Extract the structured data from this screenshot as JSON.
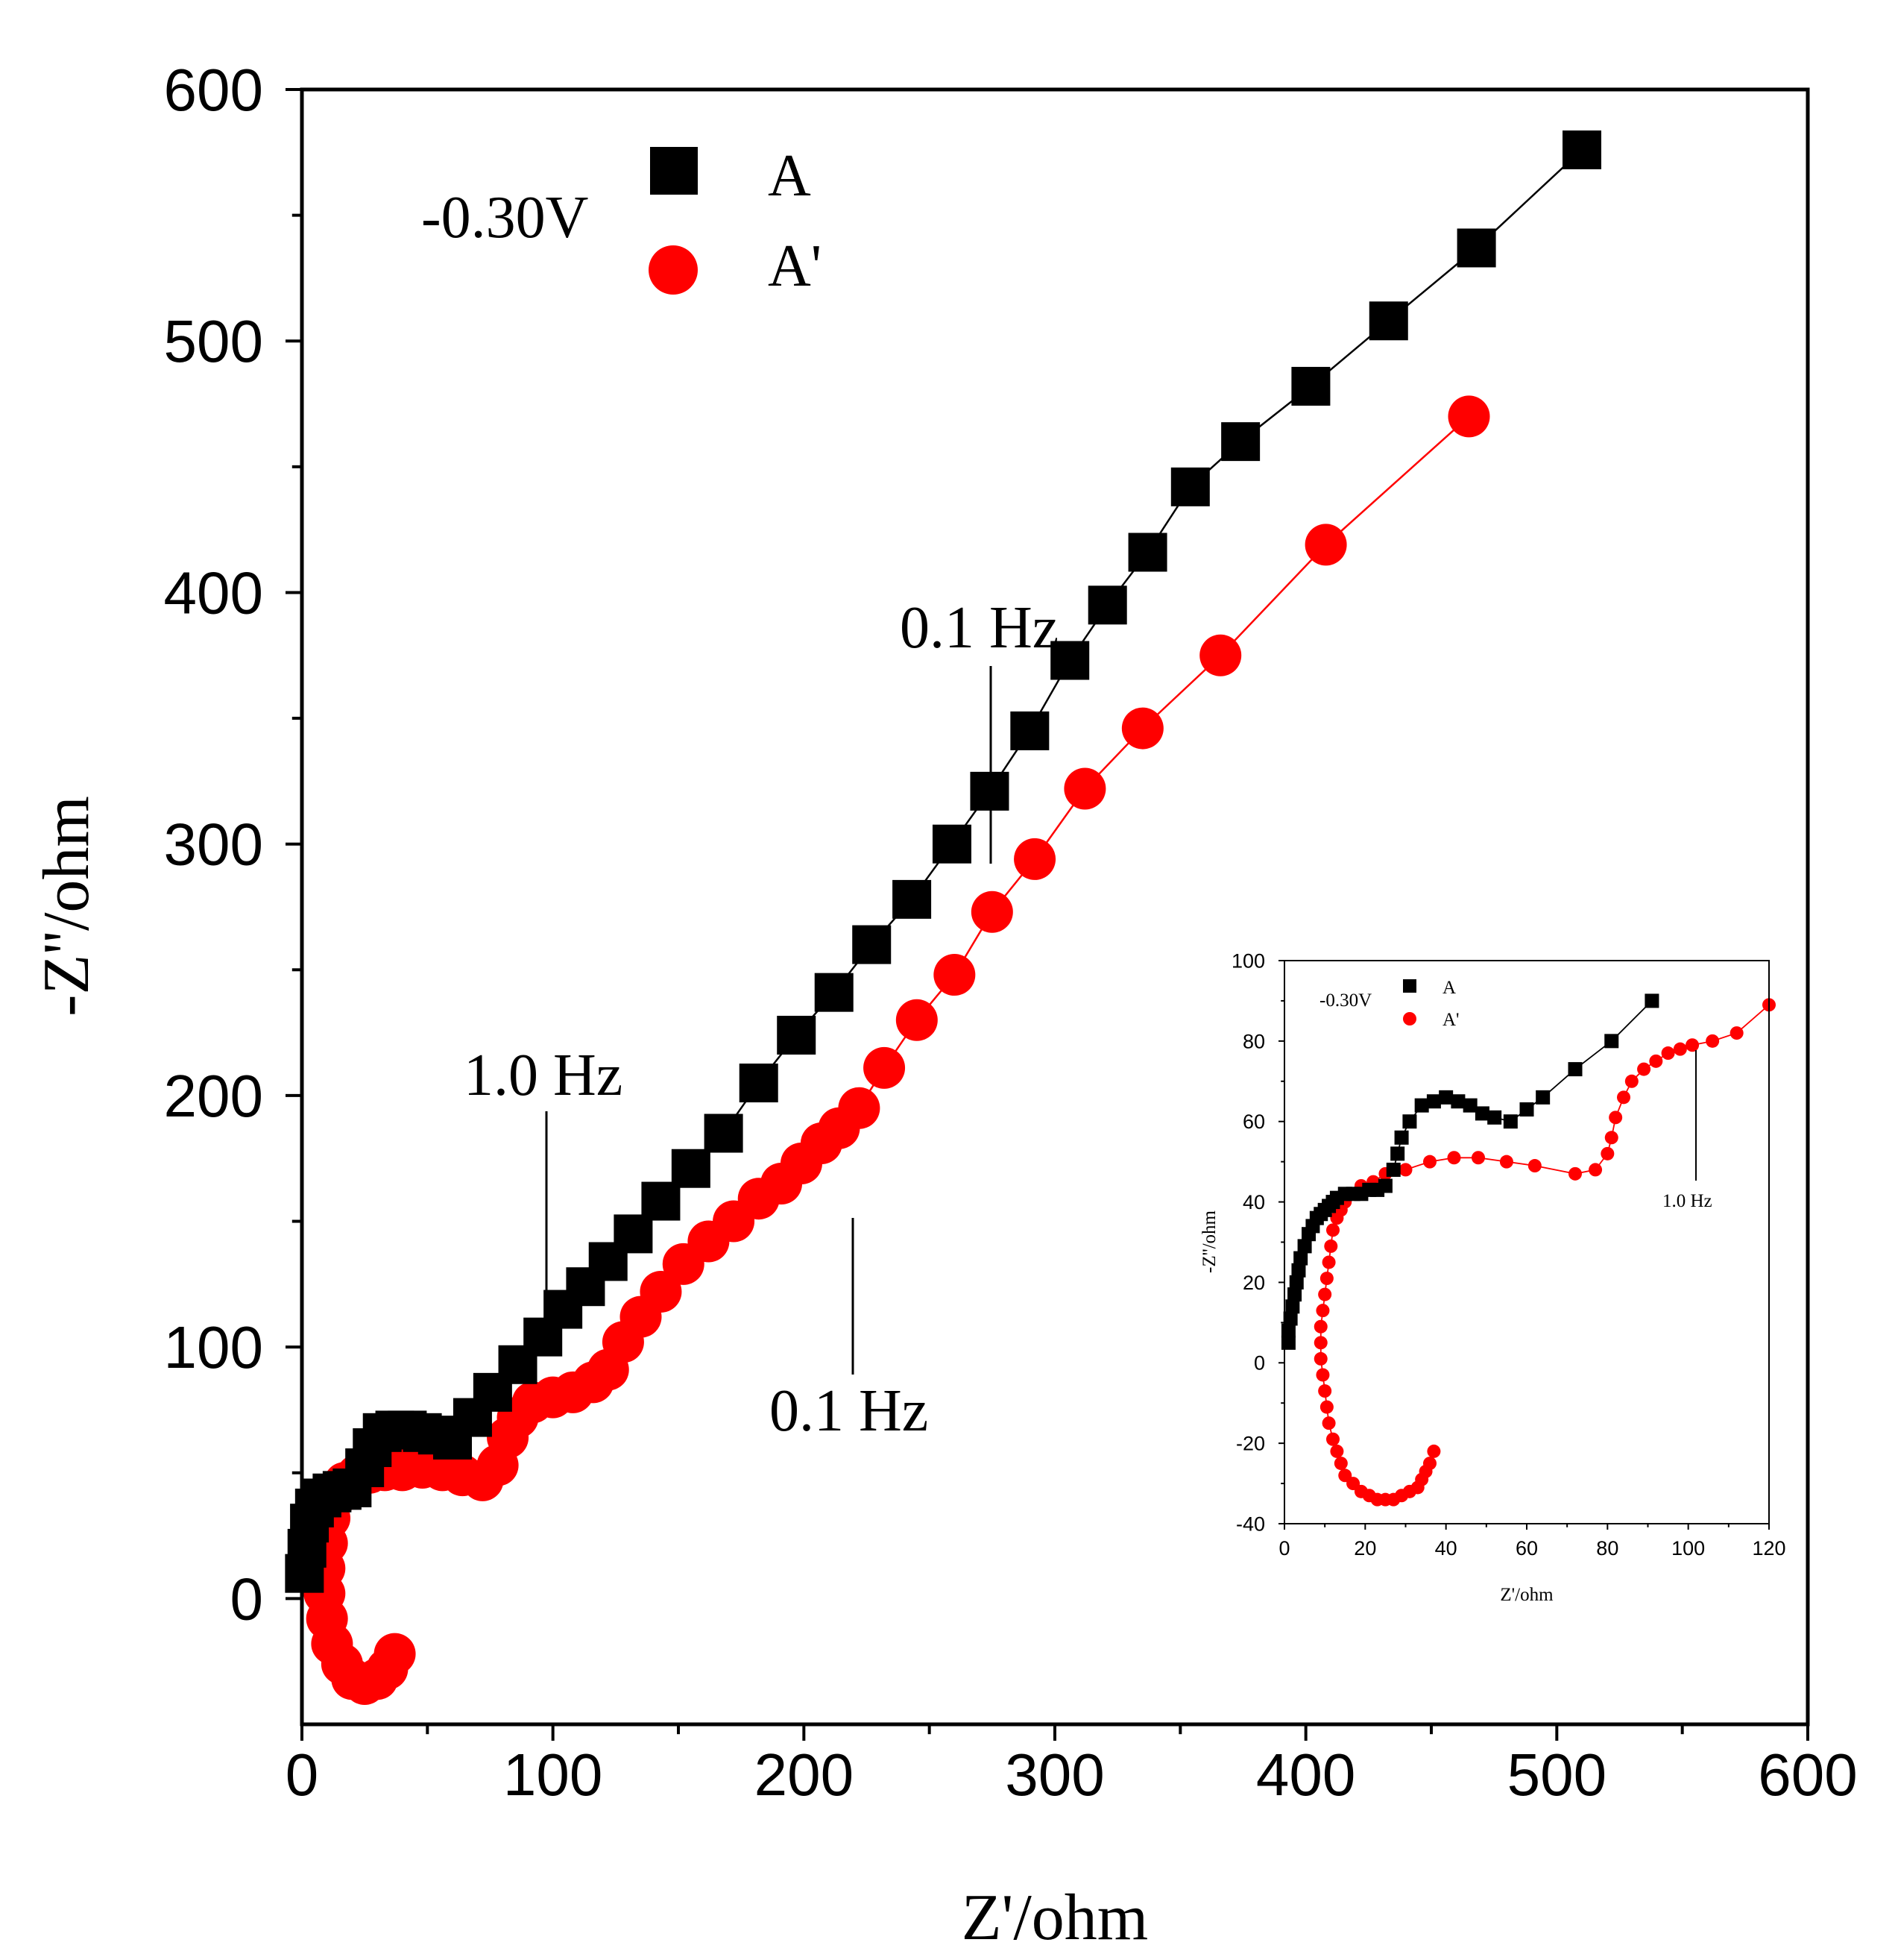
{
  "chart_data": [
    {
      "id": "main",
      "type": "scatter",
      "xlabel": "Z'/ohm",
      "ylabel": "-Z''/ohm",
      "xlim": [
        0,
        600
      ],
      "ylim": [
        -50,
        600
      ],
      "x_ticks": [
        0,
        100,
        200,
        300,
        400,
        500,
        600
      ],
      "y_ticks": [
        0,
        100,
        200,
        300,
        400,
        500,
        600
      ],
      "legend_title": "-0.30V",
      "legend_position": "top-left",
      "series": [
        {
          "name": "A",
          "marker": "square",
          "color": "#000000",
          "points": [
            [
              1,
              10
            ],
            [
              2,
              20
            ],
            [
              3,
              30
            ],
            [
              5,
              36
            ],
            [
              8,
              40
            ],
            [
              12,
              42
            ],
            [
              16,
              43
            ],
            [
              20,
              44
            ],
            [
              25,
              52
            ],
            [
              28,
              60
            ],
            [
              32,
              66
            ],
            [
              37,
              67
            ],
            [
              42,
              67
            ],
            [
              48,
              66
            ],
            [
              54,
              65
            ],
            [
              60,
              63
            ],
            [
              68,
              72
            ],
            [
              76,
              82
            ],
            [
              86,
              93
            ],
            [
              96,
              104
            ],
            [
              104,
              115
            ],
            [
              113,
              124
            ],
            [
              122,
              134
            ],
            [
              132,
              145
            ],
            [
              143,
              158
            ],
            [
              155,
              171
            ],
            [
              168,
              185
            ],
            [
              182,
              205
            ],
            [
              197,
              224
            ],
            [
              212,
              241
            ],
            [
              227,
              260
            ],
            [
              243,
              278
            ],
            [
              259,
              300
            ],
            [
              274,
              321
            ],
            [
              290,
              345
            ],
            [
              306,
              373
            ],
            [
              321,
              395
            ],
            [
              337,
              416
            ],
            [
              354,
              442
            ],
            [
              374,
              460
            ],
            [
              402,
              482
            ],
            [
              433,
              508
            ],
            [
              468,
              537
            ],
            [
              510,
              576
            ]
          ]
        },
        {
          "name": "A'",
          "marker": "circle",
          "color": "#ff0000",
          "points": [
            [
              37,
              -22
            ],
            [
              34,
              -28
            ],
            [
              30,
              -32
            ],
            [
              25,
              -34
            ],
            [
              20,
              -32
            ],
            [
              16,
              -26
            ],
            [
              12,
              -18
            ],
            [
              10,
              -8
            ],
            [
              9,
              2
            ],
            [
              9,
              12
            ],
            [
              10,
              22
            ],
            [
              11,
              32
            ],
            [
              13,
              40
            ],
            [
              17,
              46
            ],
            [
              22,
              49
            ],
            [
              27,
              50
            ],
            [
              33,
              51
            ],
            [
              40,
              51
            ],
            [
              48,
              52
            ],
            [
              56,
              51
            ],
            [
              64,
              49
            ],
            [
              72,
              47
            ],
            [
              78,
              53
            ],
            [
              82,
              64
            ],
            [
              86,
              72
            ],
            [
              92,
              78
            ],
            [
              100,
              80
            ],
            [
              108,
              82
            ],
            [
              116,
              86
            ],
            [
              122,
              91
            ],
            [
              128,
              102
            ],
            [
              135,
              112
            ],
            [
              143,
              122
            ],
            [
              152,
              133
            ],
            [
              162,
              142
            ],
            [
              172,
              150
            ],
            [
              182,
              159
            ],
            [
              191,
              165
            ],
            [
              199,
              173
            ],
            [
              207,
              181
            ],
            [
              214,
              187
            ],
            [
              222,
              195
            ],
            [
              232,
              211
            ],
            [
              245,
              230
            ],
            [
              260,
              248
            ],
            [
              275,
              273
            ],
            [
              292,
              294
            ],
            [
              312,
              322
            ],
            [
              335,
              346
            ],
            [
              366,
              375
            ],
            [
              408,
              419
            ],
            [
              465,
              470
            ]
          ]
        }
      ],
      "annotations": [
        {
          "text": "1.0 Hz",
          "at": [
            96,
            105
          ]
        },
        {
          "text": "0.1 Hz",
          "at": [
            273,
            290
          ]
        },
        {
          "text": "0.1 Hz",
          "at": [
            219,
            150
          ]
        }
      ]
    },
    {
      "id": "inset",
      "type": "scatter",
      "xlabel": "Z'/ohm",
      "ylabel": "-Z''/ohm",
      "xlim": [
        0,
        120
      ],
      "ylim": [
        -40,
        100
      ],
      "x_ticks": [
        0,
        20,
        40,
        60,
        80,
        100,
        120
      ],
      "y_ticks": [
        -40,
        -20,
        0,
        20,
        40,
        60,
        80,
        100
      ],
      "legend_title": "-0.30V",
      "series": [
        {
          "name": "A",
          "marker": "square",
          "color": "#000000",
          "points": [
            [
              1,
              5
            ],
            [
              1,
              8
            ],
            [
              1.5,
              11
            ],
            [
              2,
              14
            ],
            [
              2.5,
              17
            ],
            [
              3,
              20
            ],
            [
              3.5,
              23
            ],
            [
              4,
              26
            ],
            [
              5,
              29
            ],
            [
              6,
              32
            ],
            [
              7,
              34
            ],
            [
              8,
              36
            ],
            [
              9,
              37
            ],
            [
              10,
              38
            ],
            [
              11,
              39
            ],
            [
              12,
              40
            ],
            [
              13,
              41
            ],
            [
              15,
              42
            ],
            [
              17,
              42
            ],
            [
              19,
              42
            ],
            [
              21,
              43
            ],
            [
              23,
              43
            ],
            [
              25,
              44
            ],
            [
              27,
              48
            ],
            [
              28,
              52
            ],
            [
              29,
              56
            ],
            [
              31,
              60
            ],
            [
              34,
              64
            ],
            [
              37,
              65
            ],
            [
              40,
              66
            ],
            [
              43,
              65
            ],
            [
              46,
              64
            ],
            [
              49,
              62
            ],
            [
              52,
              61
            ],
            [
              56,
              60
            ],
            [
              60,
              63
            ],
            [
              64,
              66
            ],
            [
              72,
              73
            ],
            [
              81,
              80
            ],
            [
              91,
              90
            ]
          ]
        },
        {
          "name": "A'",
          "marker": "circle",
          "color": "#ff0000",
          "points": [
            [
              37,
              -22
            ],
            [
              36,
              -25
            ],
            [
              35,
              -27
            ],
            [
              34,
              -29
            ],
            [
              33,
              -31
            ],
            [
              31,
              -32
            ],
            [
              29,
              -33
            ],
            [
              27,
              -34
            ],
            [
              25,
              -34
            ],
            [
              23,
              -34
            ],
            [
              21,
              -33
            ],
            [
              19,
              -32
            ],
            [
              17,
              -30
            ],
            [
              15,
              -28
            ],
            [
              14,
              -25
            ],
            [
              13,
              -22
            ],
            [
              12,
              -19
            ],
            [
              11,
              -15
            ],
            [
              10.5,
              -11
            ],
            [
              10,
              -7
            ],
            [
              9.5,
              -3
            ],
            [
              9,
              1
            ],
            [
              9,
              5
            ],
            [
              9,
              9
            ],
            [
              9.5,
              13
            ],
            [
              10,
              17
            ],
            [
              10.5,
              21
            ],
            [
              11,
              25
            ],
            [
              11.5,
              29
            ],
            [
              12,
              33
            ],
            [
              13,
              36
            ],
            [
              14,
              38
            ],
            [
              15,
              40
            ],
            [
              17,
              42
            ],
            [
              19,
              44
            ],
            [
              22,
              45
            ],
            [
              25,
              47
            ],
            [
              30,
              48
            ],
            [
              36,
              50
            ],
            [
              42,
              51
            ],
            [
              48,
              51
            ],
            [
              55,
              50
            ],
            [
              62,
              49
            ],
            [
              72,
              47
            ],
            [
              77,
              48
            ],
            [
              80,
              52
            ],
            [
              81,
              56
            ],
            [
              82,
              61
            ],
            [
              84,
              66
            ],
            [
              86,
              70
            ],
            [
              89,
              73
            ],
            [
              92,
              75
            ],
            [
              95,
              77
            ],
            [
              98,
              78
            ],
            [
              101,
              79
            ],
            [
              106,
              80
            ],
            [
              112,
              82
            ],
            [
              120,
              89
            ]
          ]
        }
      ],
      "annotations": [
        {
          "text": "1.0 Hz",
          "at": [
            101,
            79
          ]
        }
      ]
    }
  ]
}
